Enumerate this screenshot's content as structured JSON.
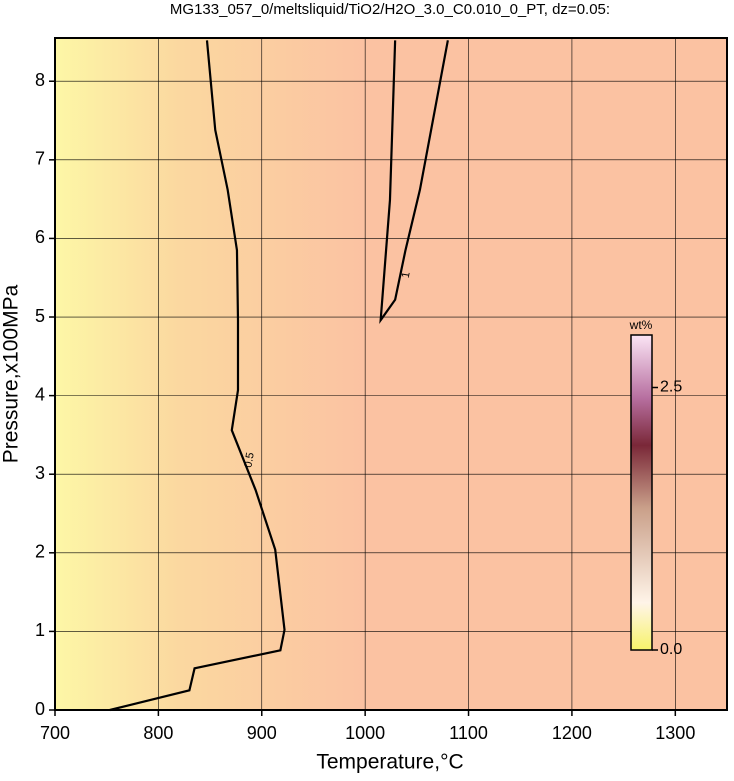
{
  "chart_data": {
    "type": "contour",
    "title": "MG133_057_0/meltsliquid/TiO2/H2O_3.0_C0.010_0_PT, dz=0.05:",
    "x_label": "Temperature,°C",
    "y_label": "Pressure,x100MPa",
    "xlim": [
      700,
      1350
    ],
    "xticks": [
      700,
      800,
      900,
      1000,
      1100,
      1200,
      1300
    ],
    "ylim": [
      0,
      8.55
    ],
    "yticks": [
      0,
      1,
      2,
      3,
      4,
      5,
      6,
      7,
      8
    ],
    "grid": true,
    "contours": [
      {
        "level": 0.5,
        "x": [
          753,
          830,
          835,
          918,
          922,
          913,
          894,
          871,
          877,
          877,
          876,
          867,
          855,
          847
        ],
        "y": [
          0,
          0.25,
          0.53,
          0.76,
          1.02,
          2.04,
          2.8,
          3.56,
          4.07,
          4.96,
          5.85,
          6.62,
          7.38,
          8.52
        ]
      },
      {
        "level": 1,
        "x": [
          1080,
          1053,
          1039,
          1029,
          1015,
          1024,
          1029
        ],
        "y": [
          8.52,
          6.62,
          5.85,
          5.22,
          4.96,
          6.49,
          8.52
        ]
      }
    ],
    "colorbar": {
      "label": "wt%",
      "lim": [
        0,
        3.0
      ],
      "ticks": [
        {
          "value": 0,
          "label": "0.0"
        },
        2.5
      ]
    }
  }
}
